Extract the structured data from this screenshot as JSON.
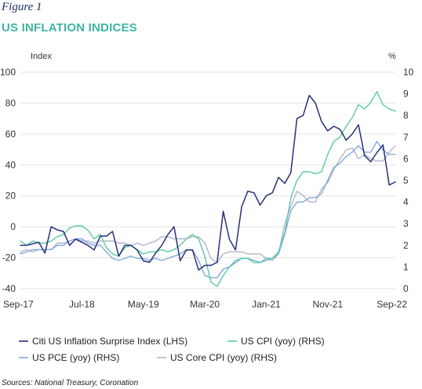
{
  "figure_label": "Figure 1",
  "title": "US INFLATION INDICES",
  "sources": "Sources: National Treasury, Coronation",
  "colors": {
    "surprise": "#26317a",
    "cpi": "#5cc9a5",
    "pce": "#7ea8dc",
    "core": "#b4b4ce",
    "grid": "#e4e4e4",
    "title": "#3fb5a0"
  },
  "chart_data": {
    "type": "line",
    "left_axis_label": "Index",
    "right_axis_label": "%",
    "y_left": {
      "min": -40,
      "max": 100,
      "ticks": [
        "100",
        "80",
        "60",
        "40",
        "20",
        "0",
        "-20",
        "-40"
      ]
    },
    "y_right": {
      "min": 0,
      "max": 10,
      "ticks": [
        "10",
        "9",
        "8",
        "7",
        "6",
        "5",
        "4",
        "3",
        "2",
        "1",
        "0"
      ]
    },
    "x_ticks": [
      "Sep-17",
      "Jul-18",
      "May-19",
      "Mar-20",
      "Jan-21",
      "Nov-21",
      "Sep-22"
    ],
    "x_tick_index": [
      0,
      10,
      20,
      30,
      40,
      50,
      60
    ],
    "grid": true,
    "legend_position": "bottom",
    "series": [
      {
        "key": "surprise",
        "name": "Citi US Inflation Surprise Index (LHS)",
        "axis": "left",
        "values": [
          -12,
          -12,
          -11,
          -10,
          -17,
          0,
          -2,
          -3,
          -12,
          -8,
          -10,
          -12,
          -15,
          -6,
          -6,
          -3,
          -19,
          -12,
          -12,
          -15,
          -22,
          -23,
          -17,
          -12,
          -5,
          0,
          -22,
          -15,
          -15,
          -28,
          -25,
          -25,
          -23,
          10,
          -8,
          -15,
          13,
          23,
          22,
          14,
          20,
          22,
          32,
          28,
          35,
          70,
          72,
          85,
          80,
          68,
          62,
          65,
          63,
          56,
          60,
          66,
          46,
          42,
          48,
          53,
          27,
          29
        ]
      },
      {
        "key": "cpi",
        "name": "US CPI (yoy) (RHS)",
        "axis": "right",
        "values": [
          2.2,
          2.0,
          2.2,
          2.1,
          2.1,
          2.2,
          2.4,
          2.5,
          2.8,
          2.9,
          2.9,
          2.7,
          2.3,
          2.5,
          1.9,
          1.6,
          1.5,
          1.9,
          2.0,
          1.8,
          1.6,
          1.7,
          1.7,
          1.8,
          1.7,
          1.8,
          2.0,
          2.3,
          2.5,
          2.3,
          1.5,
          0.3,
          0.1,
          0.6,
          1.0,
          1.3,
          1.4,
          1.4,
          1.2,
          1.2,
          1.4,
          1.4,
          1.7,
          2.6,
          4.2,
          5.0,
          5.4,
          5.4,
          5.3,
          5.4,
          6.2,
          6.8,
          7.0,
          7.5,
          7.9,
          8.5,
          8.3,
          8.6,
          9.1,
          8.5,
          8.3,
          8.2
        ]
      },
      {
        "key": "pce",
        "name": "US PCE (yoy) (RHS)",
        "axis": "right",
        "values": [
          1.6,
          1.7,
          1.8,
          1.8,
          1.8,
          1.8,
          2.0,
          2.0,
          2.2,
          2.3,
          2.3,
          2.1,
          2.0,
          2.0,
          1.7,
          1.4,
          1.3,
          1.4,
          1.5,
          1.4,
          1.4,
          1.3,
          1.4,
          1.3,
          1.4,
          1.5,
          1.6,
          1.8,
          1.8,
          1.3,
          0.6,
          0.5,
          0.5,
          0.9,
          1.0,
          1.2,
          1.4,
          1.4,
          1.3,
          1.2,
          1.3,
          1.4,
          1.6,
          2.5,
          3.6,
          4.0,
          4.0,
          4.2,
          4.2,
          4.4,
          5.0,
          5.6,
          5.8,
          6.1,
          6.3,
          6.6,
          6.3,
          6.3,
          6.8,
          6.4,
          6.2,
          6.2
        ]
      },
      {
        "key": "core",
        "name": "US Core CPI (yoy) (RHS)",
        "axis": "right",
        "values": [
          1.7,
          1.8,
          1.7,
          1.8,
          1.8,
          1.8,
          2.1,
          2.1,
          2.2,
          2.3,
          2.2,
          2.2,
          2.1,
          2.2,
          2.2,
          2.2,
          2.1,
          2.1,
          2.0,
          2.1,
          2.0,
          2.1,
          2.2,
          2.4,
          2.4,
          2.3,
          2.3,
          2.3,
          2.4,
          2.4,
          2.1,
          1.4,
          1.2,
          1.6,
          1.7,
          1.7,
          1.7,
          1.6,
          1.6,
          1.6,
          1.4,
          1.3,
          1.6,
          3.0,
          3.8,
          4.5,
          4.3,
          4.0,
          4.0,
          4.6,
          4.9,
          5.5,
          6.0,
          6.4,
          6.5,
          6.0,
          6.2,
          6.0,
          5.9,
          5.9,
          6.3,
          6.6
        ]
      }
    ]
  }
}
